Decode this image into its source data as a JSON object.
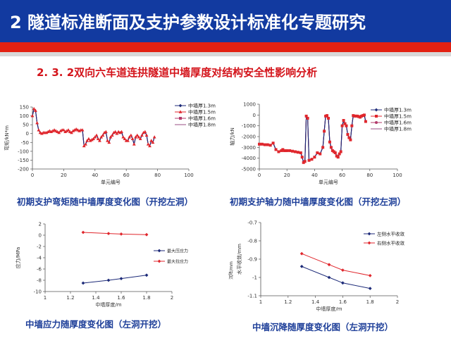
{
  "header": {
    "title": "2  隧道标准断面及支护参数设计标准化专题研究",
    "bg_color": "#123aa0",
    "stripe_color": "#e32112"
  },
  "subtitle": "2. 3. 2双向六车道连拱隧道中墙厚度对结构安全性影响分析",
  "captions": {
    "c1": "初期支护弯矩随中墙厚度变化图（开挖左洞）",
    "c2": "初期支护轴力随中墙厚度变化图（开挖左洞）",
    "c3": "中墙应力随厚度变化图（左洞开挖）",
    "c4": "中墙沉降随厚度变化图（左洞开挖）"
  },
  "chart_data": [
    {
      "type": "line",
      "xlabel": "单元编号",
      "ylabel": "弯矩/kN*m",
      "xlim": [
        0,
        100
      ],
      "ylim": [
        -200,
        150
      ],
      "xticks": [
        "0",
        "20",
        "40",
        "60",
        "80",
        "100"
      ],
      "yticks": [
        "150",
        "100",
        "50",
        "0",
        "-50",
        "-100",
        "-150",
        "-200"
      ],
      "legend_position": "top-right",
      "series": [
        {
          "name": "中墙厚1.3m",
          "color": "#1c2a78",
          "marker": "diamond"
        },
        {
          "name": "中墙厚1.5m",
          "color": "#e0262c",
          "marker": "triangle"
        },
        {
          "name": "中墙厚1.6m",
          "color": "#b33a6b",
          "marker": "square"
        },
        {
          "name": "中墙厚1.8m",
          "color": "#9a4f85",
          "marker": "none"
        }
      ],
      "x": [
        0,
        1,
        2,
        3,
        4,
        5,
        6,
        7,
        8,
        9,
        10,
        11,
        12,
        13,
        14,
        15,
        16,
        17,
        18,
        19,
        20,
        21,
        22,
        23,
        24,
        25,
        26,
        27,
        28,
        29,
        30,
        31,
        32,
        33,
        34,
        35,
        36,
        37,
        38,
        39,
        40,
        41,
        42,
        43,
        44,
        45,
        46,
        47,
        48,
        49,
        50,
        51,
        52,
        53,
        54,
        55,
        56,
        57,
        58,
        59,
        60,
        61,
        62,
        63,
        64,
        65,
        66,
        67,
        68,
        69,
        70,
        71,
        72,
        73,
        74,
        75,
        76,
        77,
        78
      ],
      "y": [
        100,
        140,
        130,
        60,
        20,
        5,
        0,
        5,
        5,
        5,
        10,
        15,
        10,
        15,
        20,
        15,
        10,
        5,
        15,
        20,
        20,
        10,
        15,
        20,
        10,
        5,
        15,
        20,
        25,
        20,
        15,
        20,
        20,
        -70,
        -60,
        -40,
        -30,
        -40,
        -35,
        -30,
        -20,
        -10,
        -30,
        -40,
        -20,
        -10,
        5,
        10,
        -40,
        -50,
        -20,
        -10,
        5,
        10,
        0,
        10,
        5,
        10,
        -20,
        -30,
        -40,
        -40,
        -20,
        -10,
        -30,
        -60,
        -20,
        -10,
        -20,
        -30,
        -10,
        5,
        10,
        -10,
        -60,
        -70,
        -40,
        -50,
        -20
      ]
    },
    {
      "type": "line",
      "xlabel": "单元编号",
      "ylabel": "轴力/kN",
      "xlim": [
        0,
        100
      ],
      "ylim": [
        -5000,
        1000
      ],
      "xticks": [
        "0",
        "20",
        "40",
        "60",
        "80",
        "100"
      ],
      "yticks": [
        "1000",
        "0",
        "-1000",
        "-2000",
        "-3000",
        "-4000",
        "-5000"
      ],
      "legend_position": "right",
      "series": [
        {
          "name": "中墙厚1.3m",
          "color": "#1c2a78",
          "marker": "diamond"
        },
        {
          "name": "中墙厚1.5m",
          "color": "#e0262c",
          "marker": "square"
        },
        {
          "name": "中墙厚1.6m",
          "color": "#b33a6b",
          "marker": "circle"
        },
        {
          "name": "中墙厚1.8m",
          "color": "#9a4f85",
          "marker": "none"
        }
      ],
      "x": [
        0,
        2,
        4,
        6,
        8,
        10,
        12,
        14,
        16,
        17,
        18,
        19,
        20,
        22,
        24,
        26,
        28,
        30,
        31,
        32,
        33,
        34,
        35,
        36,
        38,
        40,
        42,
        44,
        46,
        47,
        48,
        49,
        50,
        51,
        52,
        53,
        54,
        55,
        56,
        57,
        58,
        59,
        60,
        61,
        62,
        63,
        64,
        65,
        66,
        67,
        68,
        69,
        70,
        71,
        72,
        73,
        74,
        75,
        76,
        77
      ],
      "y": [
        -2700,
        -2700,
        -2750,
        -2750,
        -2800,
        -2600,
        -3200,
        -3400,
        -3300,
        -3200,
        -3300,
        -3300,
        -3300,
        -3300,
        -3350,
        -3400,
        -3450,
        -3500,
        -3900,
        -4400,
        -4300,
        -100,
        -300,
        -4200,
        -4100,
        -3900,
        -3500,
        -3600,
        -3000,
        -1500,
        -100,
        -50,
        -300,
        -2500,
        -3000,
        -3300,
        -3400,
        -3500,
        -3800,
        -3900,
        -3600,
        -3400,
        -1000,
        -500,
        -800,
        -1000,
        -1800,
        -2100,
        -2300,
        -1000,
        -50,
        -100,
        -100,
        -100,
        -150,
        -200,
        -100,
        -50,
        0,
        -600
      ]
    },
    {
      "type": "line",
      "xlabel": "中墙厚度/m",
      "ylabel": "应力/MPa",
      "xlim": [
        1,
        2
      ],
      "ylim": [
        -10,
        2
      ],
      "xticks": [
        "1",
        "1.2",
        "1.4",
        "1.6",
        "1.8",
        "2"
      ],
      "yticks": [
        "2",
        "0",
        "-2",
        "-4",
        "-6",
        "-8",
        "-10"
      ],
      "legend_position": "right",
      "categories": [
        1.3,
        1.5,
        1.6,
        1.8
      ],
      "series": [
        {
          "name": "最大压应力",
          "color": "#1c2a78",
          "values": [
            -8.5,
            -8.0,
            -7.7,
            -7.1
          ]
        },
        {
          "name": "最大拉应力",
          "color": "#e0262c",
          "values": [
            0.5,
            0.3,
            0.2,
            0.1
          ]
        }
      ]
    },
    {
      "type": "line",
      "xlabel": "中墙厚度/m",
      "ylabel": "水平收敛/mm",
      "ylabel2": "沉降/mm",
      "xlim": [
        1,
        2
      ],
      "ylim": [
        -1.1,
        -0.7
      ],
      "xticks": [
        "1",
        "1.2",
        "1.4",
        "1.6",
        "1.8",
        "2"
      ],
      "yticks": [
        "-0.7",
        "-0.8",
        "-0.9",
        "-1",
        "-1.1"
      ],
      "legend_position": "top-right",
      "categories": [
        1.3,
        1.5,
        1.6,
        1.8
      ],
      "series": [
        {
          "name": "左侧水平收敛",
          "color": "#1c2a78",
          "values": [
            -0.94,
            -1.0,
            -1.03,
            -1.06
          ]
        },
        {
          "name": "右侧水平收敛",
          "color": "#e0262c",
          "values": [
            -0.87,
            -0.93,
            -0.96,
            -0.99
          ]
        }
      ]
    }
  ]
}
